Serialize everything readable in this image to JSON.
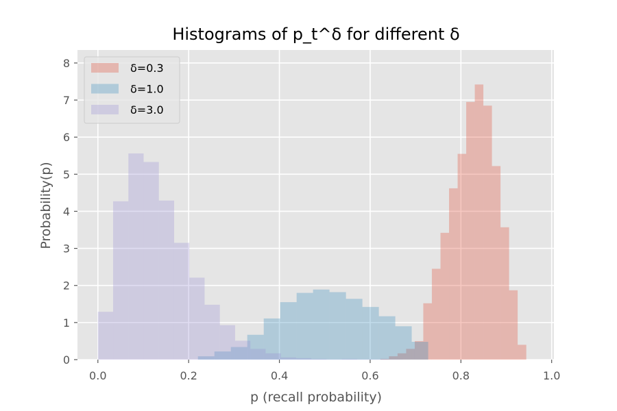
{
  "chart_data": {
    "type": "bar",
    "title": "Histograms of p_t^δ for different δ",
    "xlabel": "p (recall probability)",
    "ylabel": "Probability(p)",
    "xlim": [
      -0.045,
      1.005
    ],
    "ylim": [
      0,
      8.35
    ],
    "xticks": [
      0.0,
      0.2,
      0.4,
      0.6,
      0.8,
      1.0
    ],
    "xtick_labels": [
      "0.0",
      "0.2",
      "0.4",
      "0.6",
      "0.8",
      "1.0"
    ],
    "yticks": [
      0,
      1,
      2,
      3,
      4,
      5,
      6,
      7,
      8
    ],
    "ytick_labels": [
      "0",
      "1",
      "2",
      "3",
      "4",
      "5",
      "6",
      "7",
      "8"
    ],
    "grid": true,
    "background": "#E5E5E5",
    "legend_position": "top-left",
    "series": [
      {
        "name": "δ=0.3",
        "color": "#E24A33",
        "alpha": 0.3,
        "bin_edges": [
          0.6226,
          0.6415,
          0.6604,
          0.6793,
          0.6982,
          0.7171,
          0.736,
          0.755,
          0.7739,
          0.7928,
          0.8117,
          0.8306,
          0.8495,
          0.8684,
          0.8873,
          0.9062,
          0.9251,
          0.9441
        ],
        "values": [
          0.02,
          0.09,
          0.17,
          0.29,
          0.5,
          1.52,
          2.45,
          3.42,
          4.62,
          5.55,
          6.95,
          7.42,
          6.85,
          5.22,
          3.57,
          1.87,
          0.4
        ]
      },
      {
        "name": "δ=1.0",
        "color": "#348ABD",
        "alpha": 0.3,
        "bin_edges": [
          0.2205,
          0.2568,
          0.293,
          0.3292,
          0.3655,
          0.4017,
          0.438,
          0.4742,
          0.5104,
          0.5467,
          0.5829,
          0.6192,
          0.6554,
          0.6916,
          0.7279
        ],
        "values": [
          0.09,
          0.22,
          0.34,
          0.67,
          1.11,
          1.55,
          1.8,
          1.89,
          1.82,
          1.64,
          1.42,
          1.17,
          0.9,
          0.48
        ]
      },
      {
        "name": "δ=3.0",
        "color": "#988ED5",
        "alpha": 0.3,
        "bin_edges": [
          0.0,
          0.0336,
          0.0672,
          0.1008,
          0.1344,
          0.168,
          0.2016,
          0.2352,
          0.2688,
          0.3024,
          0.336,
          0.3696,
          0.4032,
          0.4368,
          0.4704,
          0.504,
          0.5376,
          0.5712,
          0.6048,
          0.6384,
          0.672
        ],
        "values": [
          1.29,
          4.27,
          5.56,
          5.33,
          4.29,
          3.15,
          2.21,
          1.48,
          0.93,
          0.51,
          0.29,
          0.17,
          0.06,
          0.04,
          0.02,
          0.01,
          0.02,
          0.01,
          0.01,
          0.005
        ]
      }
    ]
  }
}
